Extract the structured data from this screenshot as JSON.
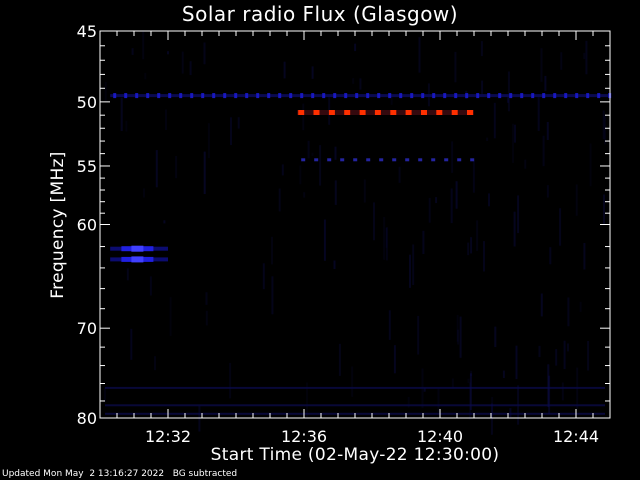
{
  "chart_data": {
    "type": "heatmap",
    "title": "Solar radio Flux (Glasgow)",
    "xlabel": "Start Time (02-May-22 12:30:00)",
    "ylabel": "Frequency [MHz]",
    "x_ticks": [
      "12:32",
      "12:36",
      "12:40",
      "12:44"
    ],
    "x_tick_minutes": [
      2,
      6,
      10,
      14
    ],
    "xlim_minutes": [
      0,
      15
    ],
    "y_ticks": [
      45,
      50,
      55,
      60,
      70,
      80
    ],
    "ylim": [
      45,
      80
    ],
    "y_scale": "log",
    "grid": false,
    "features": [
      {
        "name": "strong emission band",
        "freq_mhz": 50.8,
        "start_min": 5.8,
        "end_min": 11.0,
        "color": "#ff3000"
      },
      {
        "name": "weak emission band",
        "freq_mhz": 54.5,
        "start_min": 5.8,
        "end_min": 11.0,
        "color": "#1a1a8a"
      },
      {
        "name": "background line",
        "freq_mhz": 49.5,
        "start_min": 0.3,
        "end_min": 15.0,
        "color": "#1818c0"
      },
      {
        "name": "burst upper",
        "freq_mhz": 62.2,
        "start_min": 0.3,
        "end_min": 2.0,
        "color": "#2020e0"
      },
      {
        "name": "burst lower",
        "freq_mhz": 63.2,
        "start_min": 0.3,
        "end_min": 2.0,
        "color": "#2020e0"
      }
    ]
  },
  "footer": "Updated Mon May  2 13:16:27 2022   BG subtracted",
  "colors": {
    "background": "#000000",
    "axes": "#ffffff",
    "hot": "#ff3000",
    "cool": "#1a1ad0"
  }
}
